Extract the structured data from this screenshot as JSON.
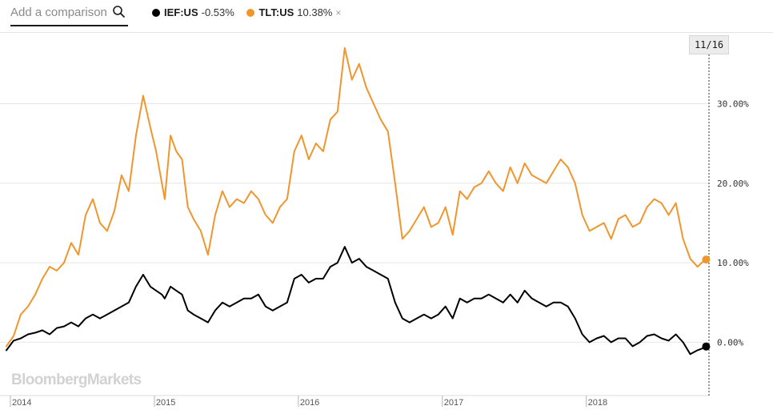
{
  "search": {
    "placeholder": "Add a comparison"
  },
  "legend": [
    {
      "ticker": "IEF:US",
      "change": "-0.53%",
      "color": "#000000",
      "removable": false
    },
    {
      "ticker": "TLT:US",
      "change": "10.38%",
      "color": "#f0962e",
      "removable": true
    }
  ],
  "remove_glyph": "×",
  "cursor_date": "11/16",
  "brand": "BloombergMarkets",
  "chart_data": {
    "type": "line",
    "y_tick_labels": [
      "30.00%",
      "20.00%",
      "10.00%",
      "0.00%"
    ],
    "y_ticks": [
      30,
      20,
      10,
      0
    ],
    "x_tick_labels": [
      "2014",
      "2015",
      "2016",
      "2017",
      "2018"
    ],
    "x_ticks": [
      2014.0,
      2015.0,
      2016.0,
      2017.0,
      2018.0
    ],
    "xlim": [
      2014.0,
      2018.88
    ],
    "ylim": [
      -6.5,
      38.5
    ],
    "grid": true,
    "series": [
      {
        "name": "TLT:US",
        "color": "#f0962e",
        "x": [
          2014.0,
          2014.05,
          2014.1,
          2014.15,
          2014.2,
          2014.25,
          2014.3,
          2014.35,
          2014.4,
          2014.45,
          2014.5,
          2014.55,
          2014.6,
          2014.65,
          2014.7,
          2014.75,
          2014.8,
          2014.85,
          2014.9,
          2014.95,
          2015.0,
          2015.04,
          2015.08,
          2015.1,
          2015.14,
          2015.18,
          2015.22,
          2015.26,
          2015.3,
          2015.35,
          2015.4,
          2015.45,
          2015.5,
          2015.55,
          2015.6,
          2015.65,
          2015.7,
          2015.75,
          2015.8,
          2015.85,
          2015.9,
          2015.95,
          2016.0,
          2016.05,
          2016.1,
          2016.15,
          2016.2,
          2016.25,
          2016.3,
          2016.35,
          2016.4,
          2016.45,
          2016.5,
          2016.55,
          2016.6,
          2016.65,
          2016.7,
          2016.75,
          2016.8,
          2016.85,
          2016.9,
          2016.95,
          2017.0,
          2017.05,
          2017.1,
          2017.15,
          2017.2,
          2017.25,
          2017.3,
          2017.35,
          2017.4,
          2017.45,
          2017.5,
          2017.55,
          2017.6,
          2017.65,
          2017.7,
          2017.75,
          2017.8,
          2017.85,
          2017.9,
          2017.95,
          2018.0,
          2018.05,
          2018.1,
          2018.15,
          2018.2,
          2018.25,
          2018.3,
          2018.35,
          2018.4,
          2018.45,
          2018.5,
          2018.55,
          2018.6,
          2018.65,
          2018.7,
          2018.75,
          2018.8,
          2018.83,
          2018.86
        ],
        "y": [
          -0.5,
          0.8,
          3.5,
          4.5,
          6.0,
          8.0,
          9.5,
          9.0,
          10.0,
          12.5,
          11.0,
          16.0,
          18.0,
          15.0,
          14.0,
          16.5,
          21.0,
          19.0,
          26.0,
          31.0,
          27.0,
          24.0,
          20.0,
          18.0,
          26.0,
          24.0,
          23.0,
          17.0,
          15.5,
          14.0,
          11.0,
          16.0,
          19.0,
          17.0,
          18.0,
          17.5,
          19.0,
          18.0,
          16.0,
          15.0,
          17.0,
          18.0,
          24.0,
          26.0,
          23.0,
          25.0,
          24.0,
          28.0,
          29.0,
          37.0,
          33.0,
          35.0,
          32.0,
          30.0,
          28.0,
          26.5,
          20.0,
          13.0,
          14.0,
          15.5,
          17.0,
          14.5,
          15.0,
          17.0,
          13.5,
          19.0,
          18.0,
          19.5,
          20.0,
          21.5,
          20.0,
          19.0,
          22.0,
          20.0,
          22.5,
          21.0,
          20.5,
          20.0,
          21.5,
          23.0,
          22.0,
          20.0,
          16.0,
          14.0,
          14.5,
          15.0,
          13.0,
          15.5,
          16.0,
          14.5,
          15.0,
          17.0,
          18.0,
          17.5,
          16.0,
          17.5,
          13.0,
          10.5,
          9.5,
          10.0,
          10.4
        ]
      },
      {
        "name": "IEF:US",
        "color": "#000000",
        "x": [
          2014.0,
          2014.05,
          2014.1,
          2014.15,
          2014.2,
          2014.25,
          2014.3,
          2014.35,
          2014.4,
          2014.45,
          2014.5,
          2014.55,
          2014.6,
          2014.65,
          2014.7,
          2014.75,
          2014.8,
          2014.85,
          2014.9,
          2014.95,
          2015.0,
          2015.04,
          2015.08,
          2015.1,
          2015.14,
          2015.18,
          2015.22,
          2015.26,
          2015.3,
          2015.35,
          2015.4,
          2015.45,
          2015.5,
          2015.55,
          2015.6,
          2015.65,
          2015.7,
          2015.75,
          2015.8,
          2015.85,
          2015.9,
          2015.95,
          2016.0,
          2016.05,
          2016.1,
          2016.15,
          2016.2,
          2016.25,
          2016.3,
          2016.35,
          2016.4,
          2016.45,
          2016.5,
          2016.55,
          2016.6,
          2016.65,
          2016.7,
          2016.75,
          2016.8,
          2016.85,
          2016.9,
          2016.95,
          2017.0,
          2017.05,
          2017.1,
          2017.15,
          2017.2,
          2017.25,
          2017.3,
          2017.35,
          2017.4,
          2017.45,
          2017.5,
          2017.55,
          2017.6,
          2017.65,
          2017.7,
          2017.75,
          2017.8,
          2017.85,
          2017.9,
          2017.95,
          2018.0,
          2018.05,
          2018.1,
          2018.15,
          2018.2,
          2018.25,
          2018.3,
          2018.35,
          2018.4,
          2018.45,
          2018.5,
          2018.55,
          2018.6,
          2018.65,
          2018.7,
          2018.75,
          2018.8,
          2018.83,
          2018.86
        ],
        "y": [
          -1.0,
          0.2,
          0.5,
          1.0,
          1.2,
          1.5,
          1.0,
          1.8,
          2.0,
          2.5,
          2.0,
          3.0,
          3.5,
          3.0,
          3.5,
          4.0,
          4.5,
          5.0,
          7.0,
          8.5,
          7.0,
          6.5,
          6.0,
          5.5,
          7.0,
          6.5,
          6.0,
          4.0,
          3.5,
          3.0,
          2.5,
          4.0,
          5.0,
          4.5,
          5.0,
          5.5,
          5.5,
          6.0,
          4.5,
          4.0,
          4.5,
          5.0,
          8.0,
          8.5,
          7.5,
          8.0,
          8.0,
          9.5,
          10.0,
          12.0,
          10.0,
          10.5,
          9.5,
          9.0,
          8.5,
          8.0,
          5.0,
          3.0,
          2.5,
          3.0,
          3.5,
          3.0,
          3.5,
          4.5,
          3.0,
          5.5,
          5.0,
          5.5,
          5.5,
          6.0,
          5.5,
          5.0,
          6.0,
          5.0,
          6.5,
          5.5,
          5.0,
          4.5,
          5.0,
          5.0,
          4.5,
          3.0,
          1.0,
          0.0,
          0.5,
          0.8,
          0.0,
          0.5,
          0.5,
          -0.5,
          0.0,
          0.8,
          1.0,
          0.5,
          0.2,
          1.0,
          0.0,
          -1.5,
          -1.0,
          -0.8,
          -0.53
        ]
      }
    ],
    "end_markers": true
  }
}
